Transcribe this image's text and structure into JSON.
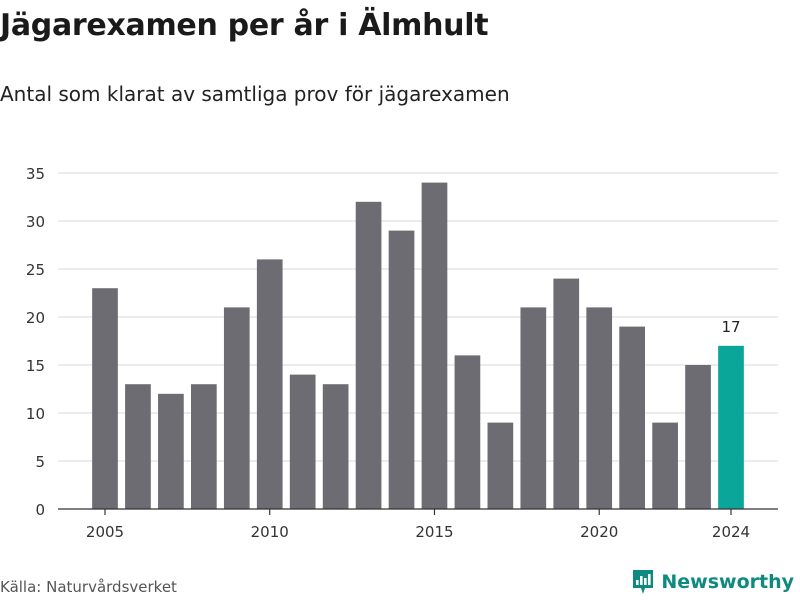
{
  "title": "Jägarexamen per år i Älmhult",
  "subtitle": "Antal som klarat av samtliga prov för jägarexamen",
  "source": "Källa: Naturvårdsverket",
  "brand": {
    "name": "Newsworthy",
    "logo_icon": "newsworthy-logo-icon",
    "color": "#0e8a80"
  },
  "colors": {
    "bar": "#6d6c72",
    "highlight": "#0aa69a",
    "grid": "#d9d9d9",
    "axis": "#333333"
  },
  "chart_data": {
    "type": "bar",
    "x": [
      2005,
      2006,
      2007,
      2008,
      2009,
      2010,
      2011,
      2012,
      2013,
      2014,
      2015,
      2016,
      2017,
      2018,
      2019,
      2020,
      2021,
      2022,
      2023,
      2024
    ],
    "values": [
      23,
      13,
      12,
      13,
      21,
      26,
      14,
      13,
      32,
      29,
      34,
      16,
      9,
      21,
      24,
      21,
      19,
      9,
      15,
      17
    ],
    "xticks": [
      "2005",
      "2010",
      "2015",
      "2020",
      "2024"
    ],
    "yticks": [
      "0",
      "5",
      "10",
      "15",
      "20",
      "25",
      "30",
      "35"
    ],
    "ylim": [
      0,
      35
    ],
    "highlight": {
      "x": 2024,
      "label": "17"
    },
    "grid": true
  }
}
